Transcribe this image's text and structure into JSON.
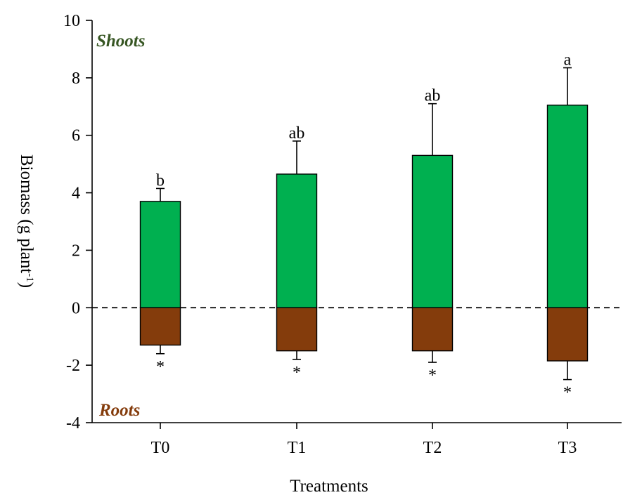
{
  "chart_data": {
    "type": "bar",
    "categories": [
      "T0",
      "T1",
      "T2",
      "T3"
    ],
    "series": [
      {
        "name": "Shoots",
        "color": "#00b050",
        "values": [
          3.7,
          4.65,
          5.3,
          7.05
        ],
        "errors": [
          0.45,
          1.15,
          1.8,
          1.3
        ],
        "annotations": [
          "b",
          "ab",
          "ab",
          "a"
        ]
      },
      {
        "name": "Roots",
        "color": "#843c0c",
        "values": [
          -1.3,
          -1.5,
          -1.5,
          -1.85
        ],
        "errors": [
          0.3,
          0.3,
          0.4,
          0.65
        ],
        "annotations": [
          "*",
          "*",
          "*",
          "*"
        ]
      }
    ],
    "xlabel": "Treatments",
    "ylabel": "Biomass (g plant",
    "ylabel_superscript": "-1",
    "ylabel_suffix": ")",
    "ylim": [
      -4,
      10
    ],
    "yticks": [
      10,
      8,
      6,
      4,
      2,
      0,
      -2,
      -4
    ],
    "ytick_labels": [
      "10",
      "8",
      "6",
      "4",
      "2",
      "0",
      "-2",
      "-4"
    ],
    "reference_line": {
      "y": 0,
      "style": "dashed"
    },
    "panel_labels": {
      "top": "Shoots",
      "top_color": "#375623",
      "bottom": "Roots",
      "bottom_color": "#843c0c"
    }
  }
}
